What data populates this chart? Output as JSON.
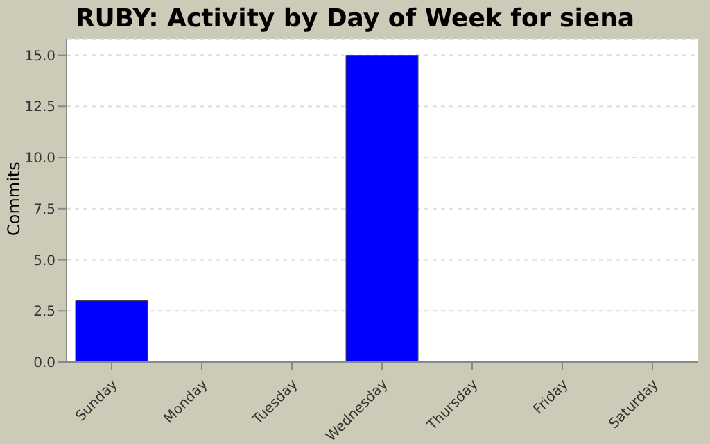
{
  "chart_data": {
    "type": "bar",
    "title": "RUBY: Activity by Day of Week for siena",
    "ylabel": "Commits",
    "categories": [
      "Sunday",
      "Monday",
      "Tuesday",
      "Wednesday",
      "Thursday",
      "Friday",
      "Saturday"
    ],
    "values": [
      3,
      0,
      0,
      15,
      0,
      0,
      0
    ],
    "color": "#0000ff",
    "ylim": [
      0,
      15.8
    ],
    "yticks": [
      {
        "value": 0,
        "label": "0.0"
      },
      {
        "value": 2.5,
        "label": "2.5"
      },
      {
        "value": 5,
        "label": "5.0"
      },
      {
        "value": 7.5,
        "label": "7.5"
      },
      {
        "value": 10,
        "label": "10.0"
      },
      {
        "value": 12.5,
        "label": "12.5"
      },
      {
        "value": 15,
        "label": "15.0"
      }
    ],
    "grid": "y",
    "legend": false
  }
}
